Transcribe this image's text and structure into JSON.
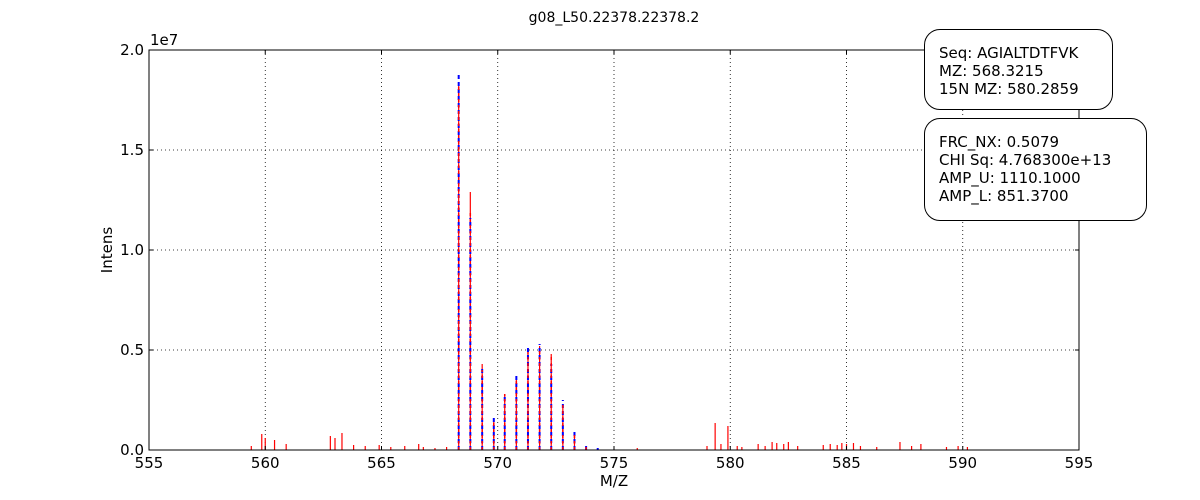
{
  "chart_data": {
    "type": "bar",
    "title": "g08_L50.22378.22378.2",
    "xlabel": "M/Z",
    "ylabel": "Intens",
    "y_multiplier_label": "1e7",
    "xlim": [
      555,
      595
    ],
    "ylim": [
      0,
      20000000
    ],
    "x_ticks": [
      555,
      560,
      565,
      570,
      575,
      580,
      585,
      590,
      595
    ],
    "x_tick_labels": [
      "555",
      "560",
      "565",
      "570",
      "575",
      "580",
      "585",
      "590",
      "595"
    ],
    "y_ticks": [
      0,
      5000000,
      10000000,
      15000000,
      20000000
    ],
    "y_tick_labels": [
      "0.0",
      "0.5",
      "1.0",
      "1.5",
      "2.0"
    ],
    "grid": true,
    "colors": {
      "observed": "#ff0000",
      "fit": "#0000ff"
    },
    "series": [
      {
        "style": "solid-red-sticks",
        "points": [
          [
            559.4,
            200000
          ],
          [
            559.85,
            800000
          ],
          [
            560.0,
            600000
          ],
          [
            560.4,
            500000
          ],
          [
            560.9,
            300000
          ],
          [
            562.8,
            700000
          ],
          [
            563.0,
            600000
          ],
          [
            563.3,
            850000
          ],
          [
            563.8,
            250000
          ],
          [
            564.3,
            200000
          ],
          [
            564.9,
            250000
          ],
          [
            565.4,
            150000
          ],
          [
            566.0,
            200000
          ],
          [
            566.6,
            300000
          ],
          [
            566.8,
            150000
          ],
          [
            567.3,
            100000
          ],
          [
            567.8,
            150000
          ],
          [
            568.32,
            18200000
          ],
          [
            568.82,
            12900000
          ],
          [
            569.33,
            4300000
          ],
          [
            569.83,
            1400000
          ],
          [
            570.3,
            2800000
          ],
          [
            570.8,
            3500000
          ],
          [
            571.3,
            4800000
          ],
          [
            571.8,
            5200000
          ],
          [
            572.3,
            4800000
          ],
          [
            572.8,
            2300000
          ],
          [
            573.3,
            800000
          ],
          [
            573.8,
            200000
          ],
          [
            574.3,
            100000
          ],
          [
            576.0,
            100000
          ],
          [
            579.0,
            200000
          ],
          [
            579.35,
            1350000
          ],
          [
            579.6,
            300000
          ],
          [
            579.9,
            1200000
          ],
          [
            580.3,
            200000
          ],
          [
            580.5,
            150000
          ],
          [
            581.2,
            300000
          ],
          [
            581.5,
            200000
          ],
          [
            581.8,
            400000
          ],
          [
            582.0,
            350000
          ],
          [
            582.3,
            300000
          ],
          [
            582.5,
            400000
          ],
          [
            582.9,
            200000
          ],
          [
            584.0,
            250000
          ],
          [
            584.3,
            300000
          ],
          [
            584.6,
            250000
          ],
          [
            584.8,
            350000
          ],
          [
            585.0,
            300000
          ],
          [
            585.3,
            350000
          ],
          [
            585.6,
            200000
          ],
          [
            586.3,
            150000
          ],
          [
            587.3,
            400000
          ],
          [
            587.8,
            200000
          ],
          [
            588.2,
            300000
          ],
          [
            589.3,
            150000
          ],
          [
            589.8,
            200000
          ],
          [
            590.2,
            150000
          ]
        ]
      },
      {
        "style": "dashed-blue-sticks",
        "points": [
          [
            568.32,
            18900000
          ],
          [
            568.82,
            11600000
          ],
          [
            569.33,
            4200000
          ],
          [
            569.83,
            1600000
          ],
          [
            570.3,
            2700000
          ],
          [
            570.8,
            3800000
          ],
          [
            571.3,
            5100000
          ],
          [
            571.8,
            5300000
          ],
          [
            572.3,
            4300000
          ],
          [
            572.8,
            2500000
          ],
          [
            573.3,
            1000000
          ],
          [
            573.8,
            300000
          ],
          [
            574.3,
            100000
          ]
        ]
      },
      {
        "style": "dashed-red-sticks",
        "points": [
          [
            568.32,
            18200000
          ],
          [
            568.82,
            12000000
          ],
          [
            569.33,
            4000000
          ],
          [
            569.83,
            1500000
          ],
          [
            570.3,
            2800000
          ],
          [
            570.8,
            3500000
          ],
          [
            571.3,
            4900000
          ],
          [
            571.8,
            5100000
          ],
          [
            572.3,
            4700000
          ],
          [
            572.8,
            2300000
          ],
          [
            573.3,
            900000
          ],
          [
            573.8,
            200000
          ]
        ]
      }
    ]
  },
  "info_box_1": {
    "seq": "Seq: AGIALTDTFVK",
    "mz": "MZ: 568.3215",
    "n15_mz": "15N MZ: 580.2859"
  },
  "info_box_2": {
    "frc_nx": "FRC_NX: 0.5079",
    "chi_sq": "CHI Sq: 4.768300e+13",
    "amp_u": "AMP_U: 1110.1000",
    "amp_l": "AMP_L: 851.3700"
  }
}
